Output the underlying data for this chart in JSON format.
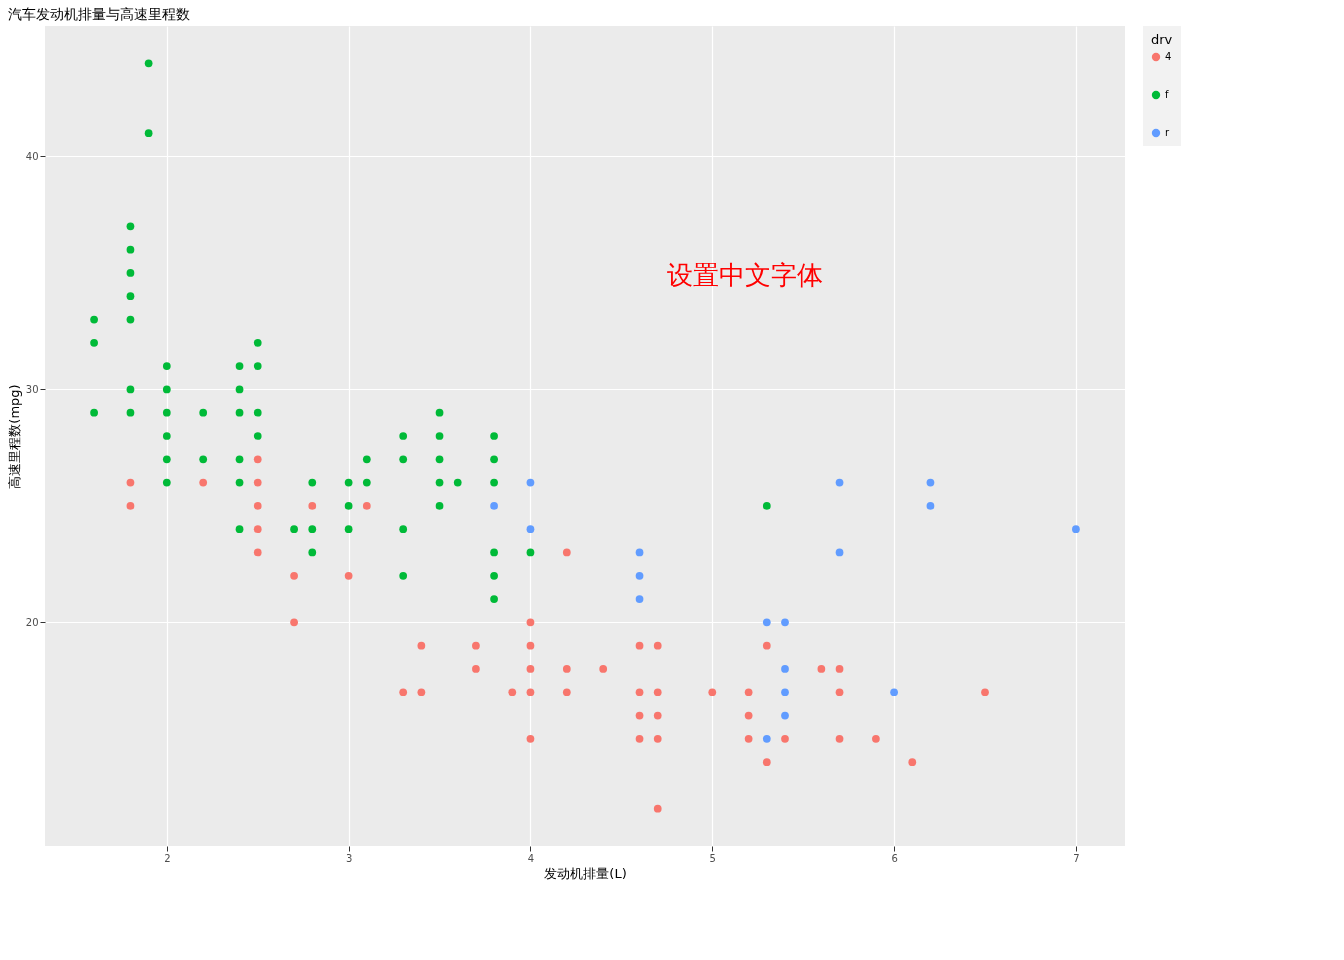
{
  "chart_data": {
    "type": "scatter",
    "title": "汽车发动机排量与高速里程数",
    "xlabel": "发动机排量(L)",
    "ylabel": "高速里程数(mpg)",
    "legend_title": "drv",
    "legend": "right",
    "grid": true,
    "marker": "circle",
    "xlim": [
      1.33,
      7.27
    ],
    "xticks": [
      2,
      3,
      4,
      5,
      6,
      7
    ],
    "ylim": [
      10.4,
      45.6
    ],
    "yticks": [
      20,
      30,
      40
    ],
    "annotations": [
      "设置中文字体"
    ],
    "series": [
      {
        "name": "4",
        "color": "#f8766d",
        "x": [
          1.8,
          1.8,
          2.2,
          2.5,
          2.5,
          2.5,
          2.5,
          2.5,
          2.7,
          2.7,
          2.8,
          3.0,
          3.1,
          3.3,
          3.4,
          3.4,
          3.7,
          3.7,
          3.9,
          4.0,
          4.0,
          4.0,
          4.0,
          4.0,
          4.2,
          4.2,
          4.2,
          4.4,
          4.6,
          4.6,
          4.6,
          4.6,
          4.7,
          4.7,
          4.7,
          4.7,
          4.7,
          5.0,
          5.2,
          5.2,
          5.2,
          5.3,
          5.3,
          5.4,
          5.6,
          5.7,
          5.7,
          5.7,
          5.9,
          6.1,
          6.5
        ],
        "values": [
          26,
          25,
          26,
          27,
          26,
          25,
          24,
          23,
          22,
          20,
          25,
          22,
          25,
          17,
          19,
          17,
          19,
          18,
          17,
          20,
          19,
          18,
          17,
          15,
          23,
          18,
          17,
          18,
          19,
          17,
          16,
          15,
          19,
          17,
          16,
          15,
          12,
          17,
          17,
          16,
          15,
          19,
          14,
          15,
          18,
          18,
          17,
          15,
          15,
          14,
          17
        ]
      },
      {
        "name": "f",
        "color": "#00ba38",
        "x": [
          1.6,
          1.6,
          1.6,
          1.8,
          1.8,
          1.8,
          1.8,
          1.8,
          1.8,
          1.8,
          1.9,
          1.9,
          2.0,
          2.0,
          2.0,
          2.0,
          2.0,
          2.0,
          2.2,
          2.2,
          2.4,
          2.4,
          2.4,
          2.4,
          2.4,
          2.4,
          2.5,
          2.5,
          2.5,
          2.5,
          2.7,
          2.8,
          2.8,
          2.8,
          3.0,
          3.0,
          3.0,
          3.1,
          3.1,
          3.3,
          3.3,
          3.3,
          3.3,
          3.5,
          3.5,
          3.5,
          3.5,
          3.5,
          3.6,
          3.8,
          3.8,
          3.8,
          3.8,
          3.8,
          3.8,
          4.0,
          5.3
        ],
        "values": [
          33,
          32,
          29,
          37,
          36,
          35,
          34,
          33,
          30,
          29,
          44,
          41,
          31,
          30,
          29,
          28,
          27,
          26,
          29,
          27,
          31,
          30,
          29,
          27,
          26,
          24,
          32,
          31,
          29,
          28,
          24,
          26,
          24,
          23,
          26,
          25,
          24,
          27,
          26,
          28,
          27,
          24,
          22,
          29,
          28,
          27,
          26,
          25,
          26,
          28,
          27,
          26,
          23,
          22,
          21,
          23,
          25
        ]
      },
      {
        "name": "r",
        "color": "#619cff",
        "x": [
          3.8,
          4.0,
          4.0,
          4.6,
          4.6,
          4.6,
          5.3,
          5.3,
          5.4,
          5.4,
          5.4,
          5.4,
          5.7,
          5.7,
          6.0,
          6.2,
          6.2,
          7.0
        ],
        "values": [
          25,
          26,
          24,
          23,
          22,
          21,
          20,
          15,
          20,
          18,
          17,
          16,
          26,
          23,
          17,
          26,
          25,
          24
        ]
      }
    ]
  }
}
